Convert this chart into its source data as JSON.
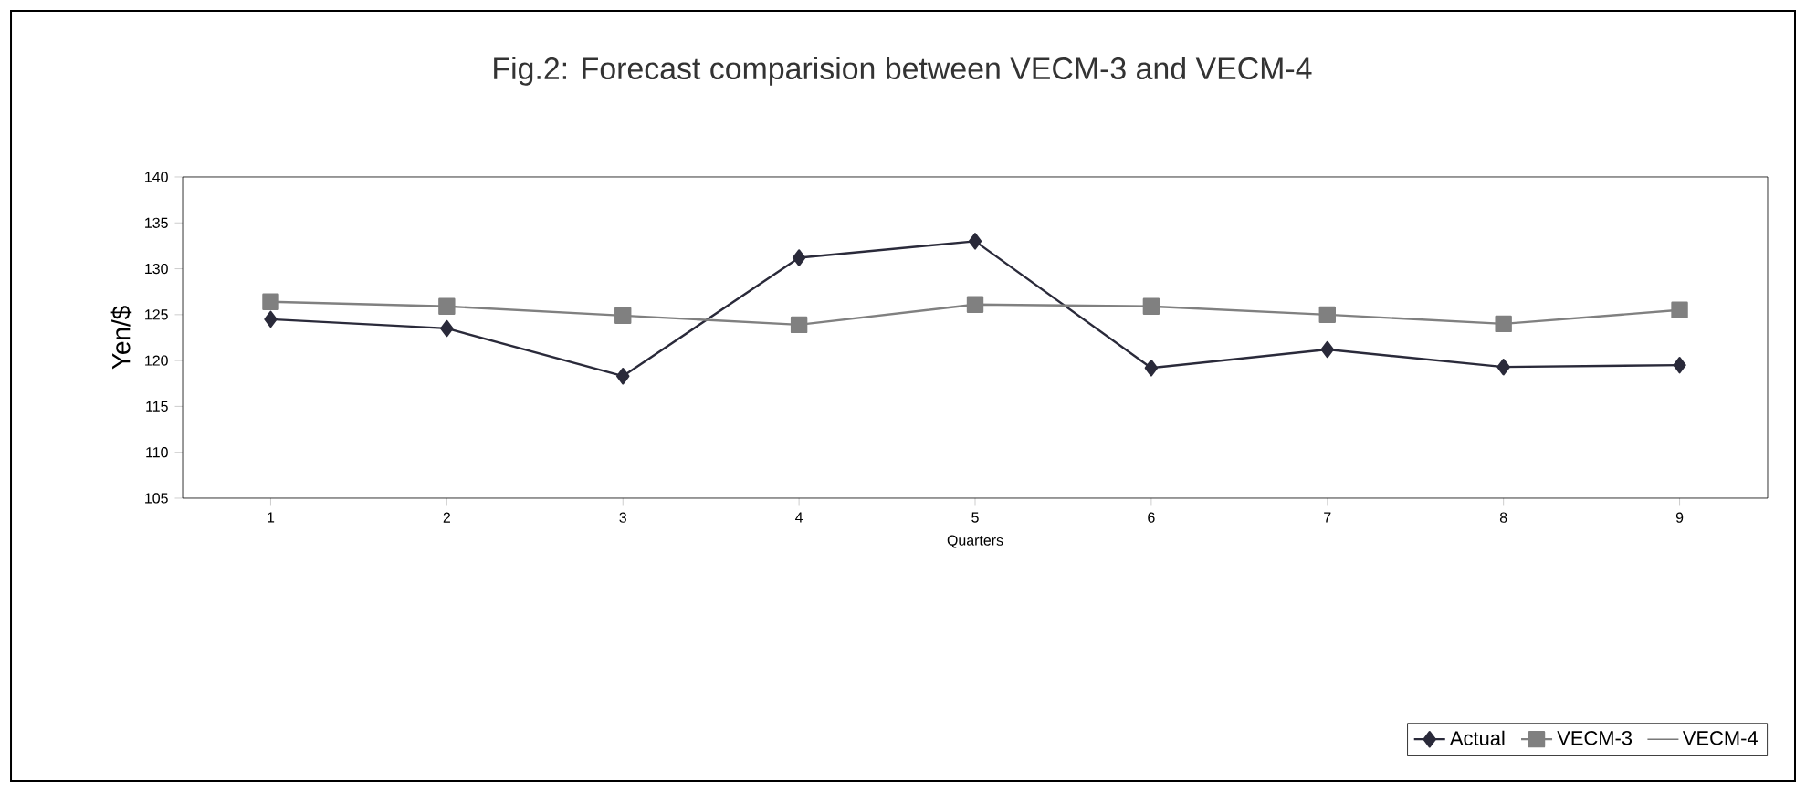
{
  "chart_data": {
    "type": "line",
    "title": "Fig.2: Forecast comparision between VECM-3 and VECM-4",
    "xlabel": "Quarters",
    "ylabel": "Yen/$",
    "categories": [
      "1",
      "2",
      "3",
      "4",
      "5",
      "6",
      "7",
      "8",
      "9"
    ],
    "series": [
      {
        "name": "Actual",
        "color": "#2a2a3a",
        "marker": "diamond",
        "values": [
          124.5,
          123.5,
          118.3,
          131.2,
          133,
          119.2,
          121.2,
          119.3,
          119.5
        ]
      },
      {
        "name": "VECM-3",
        "color": "#808080",
        "marker": "square",
        "values": [
          126.4,
          125.9,
          124.9,
          123.9,
          126.1,
          125.9,
          125.0,
          124.0,
          125.5
        ]
      },
      {
        "name": "VECM-4",
        "marker": "none",
        "values": [
          null,
          null,
          null,
          null,
          null,
          null,
          null,
          null,
          null
        ]
      }
    ],
    "ylim": [
      105,
      140
    ],
    "yticks": [
      105,
      110,
      115,
      120,
      125,
      130,
      135,
      140
    ],
    "grid": false,
    "legend": "bottom right",
    "line_style": "solid"
  }
}
